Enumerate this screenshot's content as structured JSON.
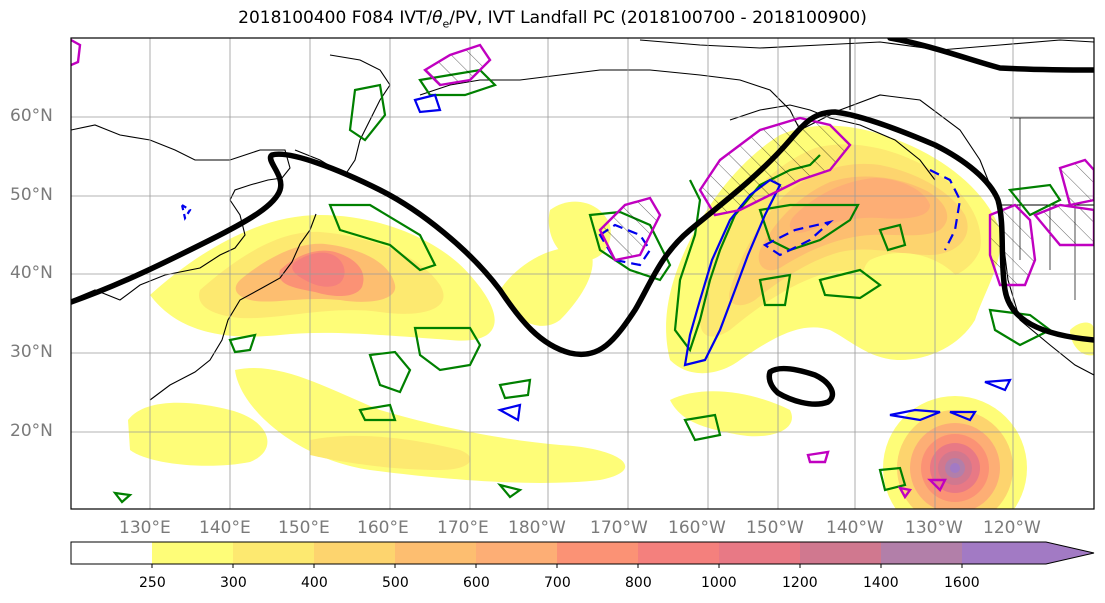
{
  "title": {
    "prefix": "2018100400 F084 IVT/",
    "theta": "θ",
    "theta_sub": "e",
    "suffix": "/PV, IVT Landfall PC (2018100700 - 2018100900)"
  },
  "map": {
    "lat_labels": [
      "60°N",
      "50°N",
      "40°N",
      "30°N",
      "20°N"
    ],
    "lon_labels": [
      "130°E",
      "140°E",
      "150°E",
      "160°E",
      "170°E",
      "180°W",
      "170°W",
      "160°W",
      "150°W",
      "140°W",
      "130°W",
      "120°W"
    ]
  },
  "colorbar": {
    "levels": [
      "250",
      "300",
      "400",
      "500",
      "600",
      "700",
      "800",
      "1000",
      "1200",
      "1400",
      "1600"
    ],
    "colors": [
      "#ffffff",
      "#fefd78",
      "#fde970",
      "#fdd46e",
      "#fdbe70",
      "#fdae75",
      "#fb9275",
      "#f4807d",
      "#e87985",
      "#d0788f",
      "#b27fa9",
      "#a27ac4"
    ]
  },
  "contour_colors": {
    "pv_green": "#008000",
    "theta_blue": "#0000ee",
    "pc_magenta": "#c000c0",
    "jet_black": "#000000"
  }
}
